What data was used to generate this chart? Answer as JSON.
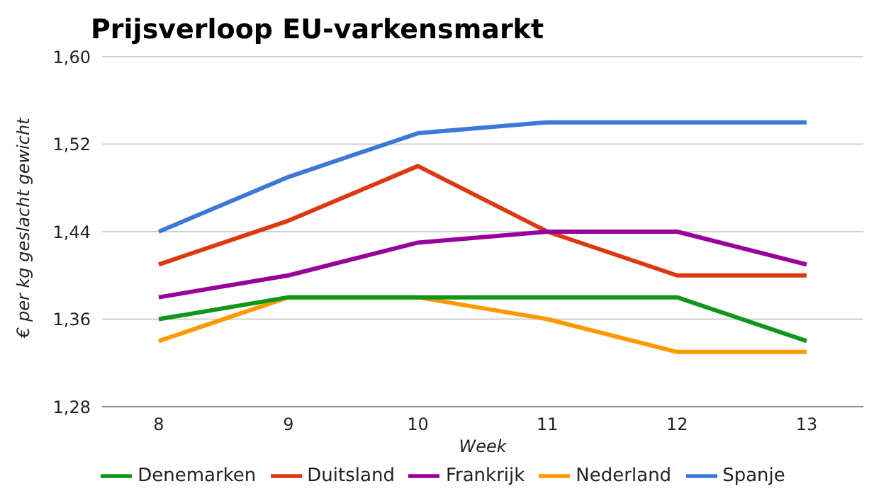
{
  "chart_data": {
    "type": "line",
    "title": "Prijsverloop EU-varkensmarkt",
    "xlabel": "Week",
    "ylabel": "€ per kg geslacht gewicht",
    "categories": [
      "8",
      "9",
      "10",
      "11",
      "12",
      "13"
    ],
    "series": [
      {
        "name": "Spanje",
        "color": "#3c78d8",
        "values": [
          1.44,
          1.49,
          1.53,
          1.54,
          1.54,
          1.54
        ]
      },
      {
        "name": "Duitsland",
        "color": "#dc3912",
        "values": [
          1.41,
          1.45,
          1.5,
          1.44,
          1.4,
          1.4
        ]
      },
      {
        "name": "Nederland",
        "color": "#ff9900",
        "values": [
          1.34,
          1.38,
          1.38,
          1.36,
          1.33,
          1.33
        ]
      },
      {
        "name": "Denemarken",
        "color": "#109618",
        "values": [
          1.36,
          1.38,
          1.38,
          1.38,
          1.38,
          1.34
        ]
      },
      {
        "name": "Frankrijk",
        "color": "#990099",
        "values": [
          1.38,
          1.4,
          1.43,
          1.44,
          1.44,
          1.41
        ]
      }
    ],
    "ylim": [
      1.28,
      1.6
    ],
    "yticks": [
      {
        "value": 1.28,
        "label": "1,28"
      },
      {
        "value": 1.36,
        "label": "1,36"
      },
      {
        "value": 1.44,
        "label": "1,44"
      },
      {
        "value": 1.52,
        "label": "1,52"
      },
      {
        "value": 1.6,
        "label": "1,60"
      }
    ],
    "grid": "y",
    "legend": "bottom",
    "marker": "none",
    "line_style": "solid"
  }
}
